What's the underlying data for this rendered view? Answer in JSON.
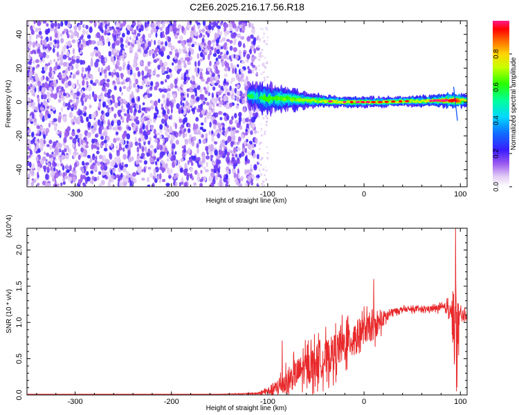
{
  "title": "C2E6.2025.216.17.56.R18",
  "chart_data": [
    {
      "type": "heatmap",
      "xlabel": "Height of straight line (km)",
      "ylabel": "Frequency (Hz)",
      "xlim": [
        -350,
        107
      ],
      "ylim": [
        -50,
        48
      ],
      "x_ticks": [
        -300,
        -200,
        -100,
        0,
        100
      ],
      "x_tick_labels": [
        "-300",
        "-200",
        "-100",
        "0",
        "100"
      ],
      "y_ticks": [
        -40,
        -20,
        0,
        20,
        40
      ],
      "y_tick_labels": [
        "-40",
        "-20",
        "0",
        "20",
        "40"
      ],
      "colorbar": {
        "label": "Normalized spectral amplitude",
        "range": [
          0,
          1
        ],
        "ticks": [
          0.0,
          0.2,
          0.4,
          0.6,
          0.8
        ],
        "tick_labels": [
          "0.0",
          "0.2",
          "0.4",
          "0.6",
          "0.8"
        ],
        "colormap": "rainbow"
      },
      "noise_region_km": [
        -350,
        -110
      ],
      "signal_band": [
        {
          "x": -120,
          "freq_center": 4,
          "freq_width": 6,
          "amp": 0.35
        },
        {
          "x": -100,
          "freq_center": 2,
          "freq_width": 8,
          "amp": 0.4
        },
        {
          "x": -80,
          "freq_center": 2,
          "freq_width": 6,
          "amp": 0.45
        },
        {
          "x": -60,
          "freq_center": 1,
          "freq_width": 4,
          "amp": 0.5
        },
        {
          "x": -40,
          "freq_center": 0.5,
          "freq_width": 3,
          "amp": 0.55
        },
        {
          "x": -20,
          "freq_center": 0,
          "freq_width": 2.5,
          "amp": 0.6
        },
        {
          "x": 0,
          "freq_center": 0,
          "freq_width": 2.5,
          "amp": 0.6
        },
        {
          "x": 20,
          "freq_center": 0,
          "freq_width": 2.5,
          "amp": 0.55
        },
        {
          "x": 40,
          "freq_center": 0.5,
          "freq_width": 2.5,
          "amp": 0.55
        },
        {
          "x": 60,
          "freq_center": 0.5,
          "freq_width": 2.5,
          "amp": 0.55
        },
        {
          "x": 80,
          "freq_center": 1,
          "freq_width": 3,
          "amp": 0.8
        },
        {
          "x": 95,
          "freq_center": 1,
          "freq_width": 4,
          "amp": 0.95
        },
        {
          "x": 107,
          "freq_center": 1,
          "freq_width": 3,
          "amp": 0.5
        }
      ]
    },
    {
      "type": "line",
      "xlabel": "Height of straight line (km)",
      "ylabel": "SNR (10 * v/v)",
      "scale_label": "(x10^4)",
      "xlim": [
        -350,
        107
      ],
      "ylim": [
        0,
        2.3
      ],
      "x_ticks": [
        -300,
        -200,
        -100,
        0,
        100
      ],
      "x_tick_labels": [
        "-300",
        "-200",
        "-100",
        "0",
        "100"
      ],
      "y_ticks": [
        0.0,
        0.5,
        1.0,
        1.5,
        2.0
      ],
      "y_tick_labels": [
        "0.0",
        "0.5",
        "1.0",
        "1.5",
        "2.0"
      ],
      "color": "#e8282a",
      "series": [
        {
          "x": [
            -350,
            -300,
            -200,
            -150,
            -110,
            -100,
            -90,
            -80,
            -70,
            -60,
            -50,
            -40,
            -30,
            -20,
            -10,
            0,
            10,
            20,
            30,
            40,
            60,
            80,
            90,
            95,
            100,
            107
          ],
          "y": [
            0.01,
            0.01,
            0.01,
            0.01,
            0.02,
            0.05,
            0.1,
            0.18,
            0.3,
            0.38,
            0.45,
            0.5,
            0.6,
            0.7,
            0.8,
            0.9,
            0.92,
            1.05,
            1.15,
            1.18,
            1.18,
            1.2,
            1.2,
            0.8,
            1.1,
            1.1
          ],
          "noise_amplitude": [
            0,
            0,
            0,
            0,
            0.02,
            0.1,
            0.2,
            0.3,
            0.35,
            0.4,
            0.45,
            0.45,
            0.45,
            0.45,
            0.4,
            0.35,
            0.3,
            0.2,
            0.08,
            0.06,
            0.06,
            0.08,
            0.2,
            1.2,
            0.2,
            0.06
          ],
          "peaks": [
            {
              "x": -85,
              "y": 0.75
            },
            {
              "x": 10,
              "y": 1.6
            },
            {
              "x": 95,
              "y": 2.3
            },
            {
              "x": 96,
              "y": 0.05
            }
          ]
        }
      ]
    }
  ]
}
